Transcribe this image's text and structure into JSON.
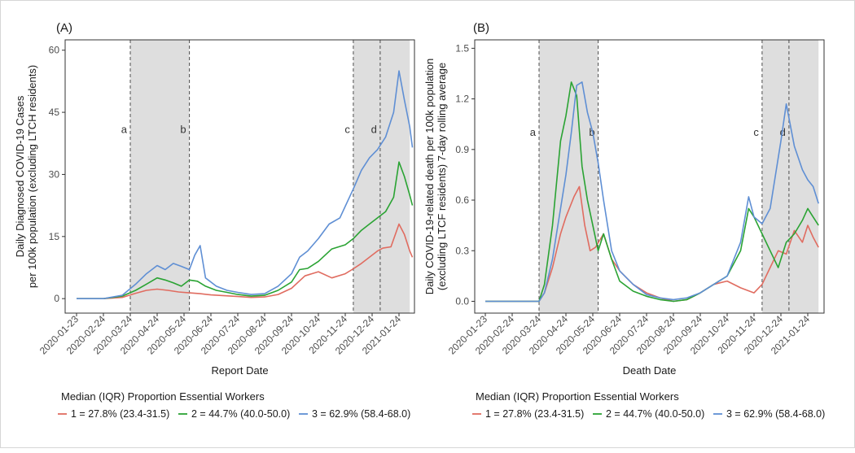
{
  "figure": {
    "background": "#ffffff",
    "shading_color": "#dedede"
  },
  "chart_data": [
    {
      "type": "line",
      "panel_label": "(A)",
      "xlabel": "Report Date",
      "ylabel": [
        "Daily Diagnosed COVID-19 Cases",
        "per 100k population (excluding LTCH residents)"
      ],
      "x_ticks": [
        "2020-01-23",
        "2020-02-24",
        "2020-03-24",
        "2020-04-24",
        "2020-05-24",
        "2020-06-24",
        "2020-07-24",
        "2020-08-24",
        "2020-09-24",
        "2020-10-24",
        "2020-11-24",
        "2020-12-24",
        "2021-01-24"
      ],
      "y_ticks": [
        "0",
        "15",
        "30",
        "45",
        "60"
      ],
      "ylim": [
        -3.5,
        62.5
      ],
      "y_tick_values": [
        0,
        15,
        30,
        45,
        60
      ],
      "shaded_periods": [
        [
          2.0,
          4.2
        ],
        [
          10.3,
          12.4
        ]
      ],
      "events": [
        {
          "label": "a",
          "x": 2.0
        },
        {
          "label": "b",
          "x": 4.2
        },
        {
          "label": "c",
          "x": 10.3
        },
        {
          "label": "d",
          "x": 11.3
        }
      ],
      "event_label_y": 40,
      "series": [
        {
          "name": "1 = 27.8% (23.4-31.5)",
          "color": "#e06c60",
          "points": [
            [
              0,
              0
            ],
            [
              1,
              0
            ],
            [
              1.7,
              0.3
            ],
            [
              2.2,
              1.3
            ],
            [
              2.6,
              2.0
            ],
            [
              3.0,
              2.3
            ],
            [
              3.4,
              2.0
            ],
            [
              3.8,
              1.6
            ],
            [
              4.2,
              1.4
            ],
            [
              4.6,
              1.2
            ],
            [
              5.0,
              0.9
            ],
            [
              5.5,
              0.7
            ],
            [
              6.0,
              0.5
            ],
            [
              6.5,
              0.3
            ],
            [
              7.0,
              0.4
            ],
            [
              7.5,
              1.0
            ],
            [
              8.0,
              2.5
            ],
            [
              8.5,
              5.5
            ],
            [
              9.0,
              6.5
            ],
            [
              9.5,
              5.0
            ],
            [
              10.0,
              6.0
            ],
            [
              10.3,
              7.2
            ],
            [
              10.6,
              8.5
            ],
            [
              10.9,
              10.0
            ],
            [
              11.2,
              11.5
            ],
            [
              11.4,
              12.2
            ],
            [
              11.7,
              12.5
            ],
            [
              12.0,
              18.0
            ],
            [
              12.2,
              15.5
            ],
            [
              12.4,
              11.5
            ],
            [
              12.5,
              10.0
            ]
          ]
        },
        {
          "name": "2 = 44.7% (40.0-50.0)",
          "color": "#2aa333",
          "points": [
            [
              0,
              0
            ],
            [
              1,
              0
            ],
            [
              1.7,
              0.6
            ],
            [
              2.2,
              2.0
            ],
            [
              2.6,
              3.5
            ],
            [
              3.0,
              5.0
            ],
            [
              3.3,
              4.5
            ],
            [
              3.6,
              3.8
            ],
            [
              3.9,
              3.0
            ],
            [
              4.2,
              4.5
            ],
            [
              4.5,
              4.2
            ],
            [
              4.8,
              3.0
            ],
            [
              5.2,
              2.0
            ],
            [
              5.6,
              1.5
            ],
            [
              6.0,
              1.0
            ],
            [
              6.5,
              0.6
            ],
            [
              7.0,
              0.8
            ],
            [
              7.5,
              2.0
            ],
            [
              8.0,
              4.0
            ],
            [
              8.3,
              7.0
            ],
            [
              8.6,
              7.3
            ],
            [
              9.0,
              9.0
            ],
            [
              9.5,
              12.0
            ],
            [
              10.0,
              13.0
            ],
            [
              10.3,
              14.5
            ],
            [
              10.6,
              16.5
            ],
            [
              10.9,
              18.0
            ],
            [
              11.2,
              19.5
            ],
            [
              11.5,
              21.0
            ],
            [
              11.8,
              24.5
            ],
            [
              12.0,
              33.0
            ],
            [
              12.2,
              29.5
            ],
            [
              12.4,
              25.0
            ],
            [
              12.5,
              22.5
            ]
          ]
        },
        {
          "name": "3 = 62.9% (58.4-68.0)",
          "color": "#5f8fd4",
          "points": [
            [
              0,
              0
            ],
            [
              1,
              0
            ],
            [
              1.7,
              0.8
            ],
            [
              2.2,
              3.5
            ],
            [
              2.6,
              6.0
            ],
            [
              3.0,
              8.0
            ],
            [
              3.3,
              7.0
            ],
            [
              3.6,
              8.5
            ],
            [
              3.9,
              7.8
            ],
            [
              4.2,
              7.0
            ],
            [
              4.4,
              10.5
            ],
            [
              4.6,
              12.8
            ],
            [
              4.8,
              5.0
            ],
            [
              5.2,
              3.0
            ],
            [
              5.6,
              2.0
            ],
            [
              6.0,
              1.5
            ],
            [
              6.5,
              1.0
            ],
            [
              7.0,
              1.2
            ],
            [
              7.5,
              3.0
            ],
            [
              8.0,
              6.0
            ],
            [
              8.3,
              10.0
            ],
            [
              8.6,
              11.5
            ],
            [
              9.0,
              14.5
            ],
            [
              9.4,
              18.0
            ],
            [
              9.8,
              19.5
            ],
            [
              10.3,
              26.5
            ],
            [
              10.6,
              31.0
            ],
            [
              10.9,
              34.0
            ],
            [
              11.2,
              36.0
            ],
            [
              11.5,
              39.0
            ],
            [
              11.8,
              45.0
            ],
            [
              12.0,
              55.0
            ],
            [
              12.2,
              48.0
            ],
            [
              12.4,
              41.5
            ],
            [
              12.5,
              36.5
            ]
          ]
        }
      ]
    },
    {
      "type": "line",
      "panel_label": "(B)",
      "xlabel": "Death Date",
      "ylabel": [
        "Daily COVID-19-related death per 100k population",
        "(excluding LTCF residents) 7-day rolling average"
      ],
      "x_ticks": [
        "2020-01-23",
        "2020-02-24",
        "2020-03-24",
        "2020-04-24",
        "2020-05-24",
        "2020-06-24",
        "2020-07-24",
        "2020-08-24",
        "2020-09-24",
        "2020-10-24",
        "2020-11-24",
        "2020-12-24",
        "2021-01-24"
      ],
      "y_ticks": [
        "0.0",
        "0.3",
        "0.6",
        "0.9",
        "1.2",
        "1.5"
      ],
      "ylim": [
        -0.07,
        1.55
      ],
      "y_tick_values": [
        0,
        0.3,
        0.6,
        0.9,
        1.2,
        1.5
      ],
      "shaded_periods": [
        [
          2.0,
          4.2
        ],
        [
          10.3,
          12.4
        ]
      ],
      "events": [
        {
          "label": "a",
          "x": 2.0
        },
        {
          "label": "b",
          "x": 4.2
        },
        {
          "label": "c",
          "x": 10.3
        },
        {
          "label": "d",
          "x": 11.3
        }
      ],
      "event_label_y": 0.98,
      "series": [
        {
          "name": "1 = 27.8% (23.4-31.5)",
          "color": "#e06c60",
          "points": [
            [
              0,
              0
            ],
            [
              1,
              0
            ],
            [
              2.0,
              0
            ],
            [
              2.2,
              0.05
            ],
            [
              2.5,
              0.2
            ],
            [
              2.8,
              0.4
            ],
            [
              3.0,
              0.5
            ],
            [
              3.3,
              0.62
            ],
            [
              3.5,
              0.68
            ],
            [
              3.7,
              0.45
            ],
            [
              3.9,
              0.3
            ],
            [
              4.1,
              0.32
            ],
            [
              4.4,
              0.4
            ],
            [
              4.7,
              0.25
            ],
            [
              5.0,
              0.18
            ],
            [
              5.5,
              0.1
            ],
            [
              6.0,
              0.05
            ],
            [
              6.5,
              0.02
            ],
            [
              7.0,
              0.0
            ],
            [
              7.5,
              0.01
            ],
            [
              8.0,
              0.05
            ],
            [
              8.5,
              0.1
            ],
            [
              9.0,
              0.12
            ],
            [
              9.5,
              0.08
            ],
            [
              10.0,
              0.05
            ],
            [
              10.3,
              0.1
            ],
            [
              10.6,
              0.2
            ],
            [
              10.9,
              0.3
            ],
            [
              11.2,
              0.28
            ],
            [
              11.5,
              0.42
            ],
            [
              11.8,
              0.35
            ],
            [
              12.0,
              0.45
            ],
            [
              12.2,
              0.38
            ],
            [
              12.4,
              0.32
            ]
          ]
        },
        {
          "name": "2 = 44.7% (40.0-50.0)",
          "color": "#2aa333",
          "points": [
            [
              0,
              0
            ],
            [
              1,
              0
            ],
            [
              2.0,
              0
            ],
            [
              2.2,
              0.1
            ],
            [
              2.5,
              0.45
            ],
            [
              2.8,
              0.95
            ],
            [
              3.0,
              1.1
            ],
            [
              3.2,
              1.3
            ],
            [
              3.4,
              1.22
            ],
            [
              3.6,
              0.8
            ],
            [
              3.8,
              0.6
            ],
            [
              4.0,
              0.45
            ],
            [
              4.2,
              0.3
            ],
            [
              4.4,
              0.4
            ],
            [
              4.7,
              0.25
            ],
            [
              5.0,
              0.12
            ],
            [
              5.5,
              0.06
            ],
            [
              6.0,
              0.03
            ],
            [
              6.5,
              0.01
            ],
            [
              7.0,
              0.0
            ],
            [
              7.5,
              0.01
            ],
            [
              8.0,
              0.05
            ],
            [
              8.5,
              0.1
            ],
            [
              9.0,
              0.15
            ],
            [
              9.5,
              0.3
            ],
            [
              9.8,
              0.55
            ],
            [
              10.0,
              0.5
            ],
            [
              10.3,
              0.4
            ],
            [
              10.6,
              0.3
            ],
            [
              10.9,
              0.2
            ],
            [
              11.2,
              0.35
            ],
            [
              11.5,
              0.4
            ],
            [
              11.8,
              0.48
            ],
            [
              12.0,
              0.55
            ],
            [
              12.2,
              0.5
            ],
            [
              12.4,
              0.45
            ]
          ]
        },
        {
          "name": "3 = 62.9% (58.4-68.0)",
          "color": "#5f8fd4",
          "points": [
            [
              0,
              0
            ],
            [
              1,
              0
            ],
            [
              2.0,
              0
            ],
            [
              2.2,
              0.05
            ],
            [
              2.5,
              0.25
            ],
            [
              2.8,
              0.55
            ],
            [
              3.0,
              0.75
            ],
            [
              3.2,
              1.0
            ],
            [
              3.4,
              1.28
            ],
            [
              3.6,
              1.3
            ],
            [
              3.8,
              1.12
            ],
            [
              4.0,
              1.0
            ],
            [
              4.2,
              0.82
            ],
            [
              4.4,
              0.6
            ],
            [
              4.7,
              0.3
            ],
            [
              5.0,
              0.18
            ],
            [
              5.5,
              0.1
            ],
            [
              6.0,
              0.04
            ],
            [
              6.5,
              0.02
            ],
            [
              7.0,
              0.01
            ],
            [
              7.5,
              0.02
            ],
            [
              8.0,
              0.05
            ],
            [
              8.5,
              0.1
            ],
            [
              9.0,
              0.15
            ],
            [
              9.5,
              0.35
            ],
            [
              9.8,
              0.62
            ],
            [
              10.0,
              0.5
            ],
            [
              10.3,
              0.46
            ],
            [
              10.6,
              0.55
            ],
            [
              10.8,
              0.75
            ],
            [
              11.0,
              0.95
            ],
            [
              11.2,
              1.17
            ],
            [
              11.5,
              0.92
            ],
            [
              11.8,
              0.78
            ],
            [
              12.0,
              0.72
            ],
            [
              12.2,
              0.68
            ],
            [
              12.4,
              0.58
            ]
          ]
        }
      ]
    }
  ],
  "legend": {
    "title": "Median (IQR) Proportion Essential Workers",
    "items": [
      {
        "label": "1 = 27.8% (23.4-31.5)",
        "color": "#e06c60"
      },
      {
        "label": "2 = 44.7% (40.0-50.0)",
        "color": "#2aa333"
      },
      {
        "label": "3 = 62.9% (58.4-68.0)",
        "color": "#5f8fd4"
      }
    ]
  }
}
